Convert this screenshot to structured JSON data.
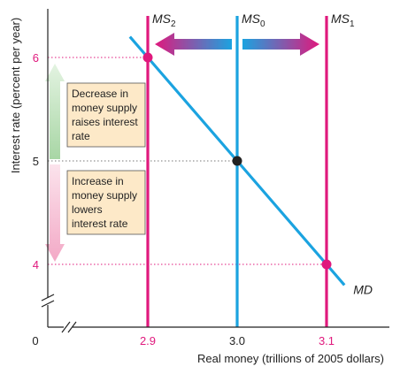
{
  "chart_data": {
    "type": "line",
    "xlabel": "Real money (trillions of 2005 dollars)",
    "ylabel": "Interest rate (percent per year)",
    "origin_label": "0",
    "x_ticks": [
      "2.9",
      "3.0",
      "3.1"
    ],
    "y_ticks": [
      "4",
      "5",
      "6"
    ],
    "xlim": [
      2.78,
      3.25
    ],
    "ylim": [
      3.35,
      6.6
    ],
    "money_supply": [
      {
        "name": "MS",
        "sub": "2",
        "x": 2.9,
        "color": "#e0197d"
      },
      {
        "name": "MS",
        "sub": "0",
        "x": 3.0,
        "color": "#1ba3e0"
      },
      {
        "name": "MS",
        "sub": "1",
        "x": 3.1,
        "color": "#e0197d"
      }
    ],
    "money_demand": {
      "name": "MD",
      "x": [
        2.88,
        2.9,
        3.0,
        3.1,
        3.12
      ],
      "y": [
        6.2,
        6.0,
        5.0,
        4.0,
        3.8
      ],
      "color": "#1ba3e0"
    },
    "equilibria": [
      {
        "x": 2.9,
        "y": 6,
        "color": "#e0197d"
      },
      {
        "x": 3.0,
        "y": 5,
        "color": "#222222"
      },
      {
        "x": 3.1,
        "y": 4,
        "color": "#e0197d"
      }
    ],
    "annotations": {
      "decrease": [
        "Decrease in",
        "money supply",
        "raises interest",
        "rate"
      ],
      "increase": [
        "Increase in",
        "money supply",
        "lowers",
        "interest rate"
      ]
    },
    "colors": {
      "accent_pink": "#e0197d",
      "accent_blue": "#1ba3e0",
      "note_fill": "#fde9c8",
      "arrow_green": "#c6e5c4",
      "arrow_pink": "#f6c4d6",
      "tick_pink": "#e0197d"
    }
  }
}
